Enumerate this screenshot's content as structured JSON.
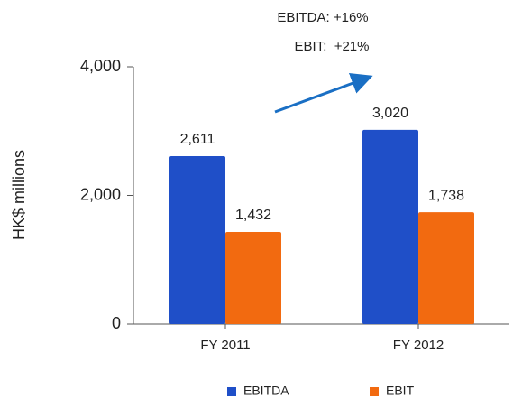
{
  "chart_data": {
    "type": "bar",
    "categories": [
      "FY 2011",
      "FY 2012"
    ],
    "series": [
      {
        "name": "EBITDA",
        "color": "#1f4fc8",
        "values": [
          2611,
          3020
        ],
        "value_labels": [
          "2,611",
          "3,020"
        ]
      },
      {
        "name": "EBIT",
        "color": "#f26a10",
        "values": [
          1432,
          1738
        ],
        "value_labels": [
          "1,432",
          "1,738"
        ]
      }
    ],
    "ylabel": "HK$ millions",
    "ylim": [
      0,
      4000
    ],
    "yticks": [
      0,
      {
        "value": 2000,
        "label": "2,000"
      },
      {
        "value": 4000,
        "label": "4,000"
      }
    ],
    "annotations": [
      "EBITDA: +16%",
      "EBIT:  +21%"
    ],
    "legend": "bottom"
  }
}
